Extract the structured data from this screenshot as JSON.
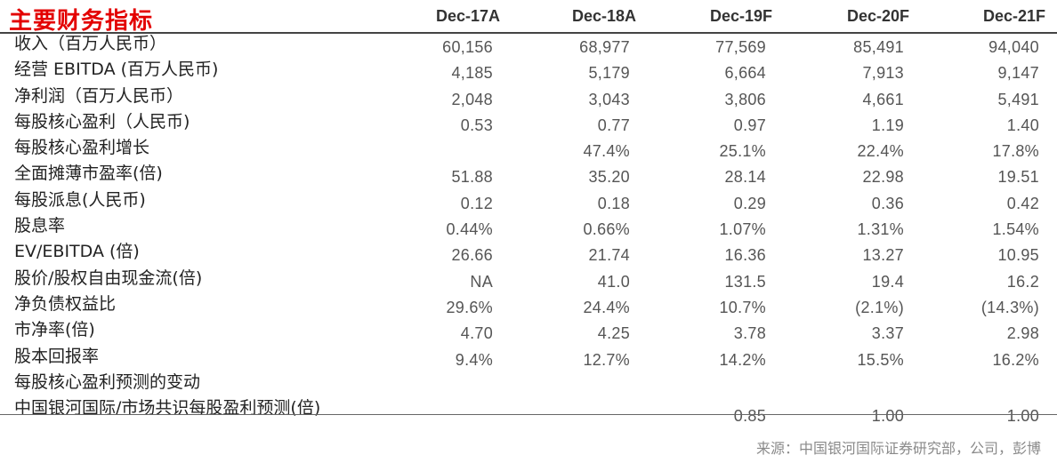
{
  "title": "主要财务指标",
  "columns": [
    "Dec-17A",
    "Dec-18A",
    "Dec-19F",
    "Dec-20F",
    "Dec-21F"
  ],
  "rows": [
    {
      "label": "收入（百万人民币）",
      "values": [
        "60,156",
        "68,977",
        "77,569",
        "85,491",
        "94,040"
      ]
    },
    {
      "label": "经营 EBITDA (百万人民币)",
      "values": [
        "4,185",
        "5,179",
        "6,664",
        "7,913",
        "9,147"
      ]
    },
    {
      "label": "净利润（百万人民币）",
      "values": [
        "2,048",
        "3,043",
        "3,806",
        "4,661",
        "5,491"
      ]
    },
    {
      "label": "每股核心盈利（人民币)",
      "values": [
        "0.53",
        "0.77",
        "0.97",
        "1.19",
        "1.40"
      ]
    },
    {
      "label": "每股核心盈利增长",
      "values": [
        "",
        "47.4%",
        "25.1%",
        "22.4%",
        "17.8%"
      ]
    },
    {
      "label": "全面摊薄市盈率(倍)",
      "values": [
        "51.88",
        "35.20",
        "28.14",
        "22.98",
        "19.51"
      ]
    },
    {
      "label": "每股派息(人民币)",
      "values": [
        "0.12",
        "0.18",
        "0.29",
        "0.36",
        "0.42"
      ]
    },
    {
      "label": "股息率",
      "values": [
        "0.44%",
        "0.66%",
        "1.07%",
        "1.31%",
        "1.54%"
      ]
    },
    {
      "label": "EV/EBITDA (倍)",
      "values": [
        "26.66",
        "21.74",
        "16.36",
        "13.27",
        "10.95"
      ]
    },
    {
      "label": "股价/股权自由现金流(倍)",
      "values": [
        "NA",
        "41.0",
        "131.5",
        "19.4",
        "16.2"
      ]
    },
    {
      "label": "净负债权益比",
      "values": [
        "29.6%",
        "24.4%",
        "10.7%",
        "(2.1%)",
        "(14.3%)"
      ]
    },
    {
      "label": "市净率(倍)",
      "values": [
        "4.70",
        "4.25",
        "3.78",
        "3.37",
        "2.98"
      ]
    },
    {
      "label": "股本回报率",
      "values": [
        "9.4%",
        "12.7%",
        "14.2%",
        "15.5%",
        "16.2%"
      ]
    },
    {
      "label": "每股核心盈利预测的变动",
      "values": [
        "",
        "",
        "",
        "",
        ""
      ]
    },
    {
      "label": "中国银河国际/市场共识每股盈利预测(倍)",
      "values": [
        "",
        "",
        "0.85",
        "1.00",
        "1.00"
      ]
    }
  ],
  "source": "来源：中国银河国际证券研究部，公司，彭博"
}
